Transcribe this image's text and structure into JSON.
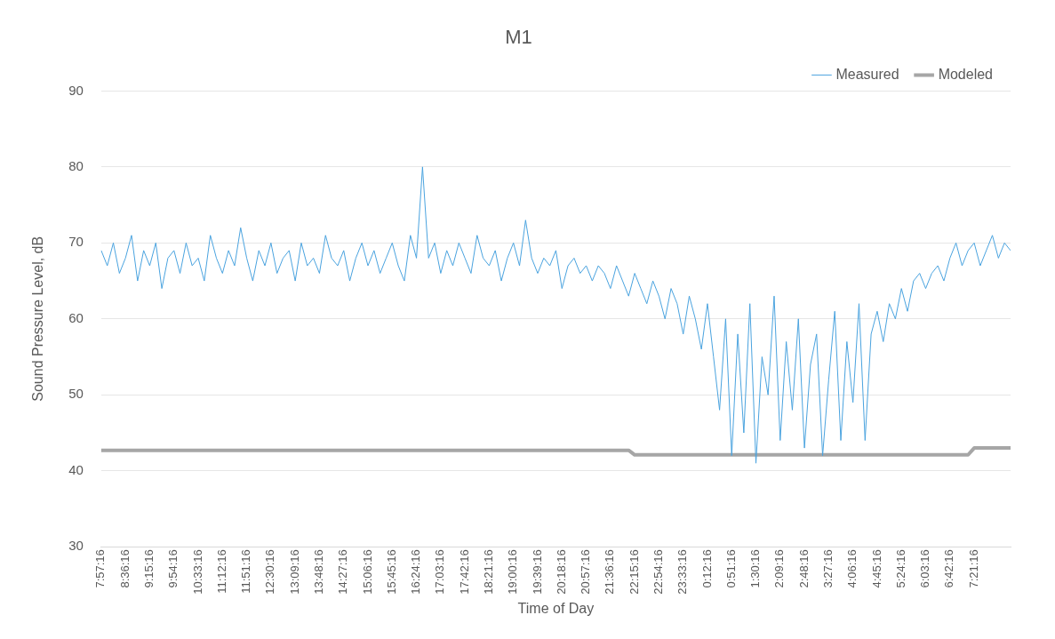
{
  "chart_data": {
    "type": "line",
    "title": "M1",
    "xlabel": "Time of Day",
    "ylabel": "Sound Pressure Level, dB",
    "categories": [
      "7:57:16",
      null,
      null,
      null,
      "8:36:16",
      null,
      null,
      null,
      "9:15:16",
      null,
      null,
      null,
      "9:54:16",
      null,
      null,
      null,
      "10:33:16",
      null,
      null,
      null,
      "11:12:16",
      null,
      null,
      null,
      "11:51:16",
      null,
      null,
      null,
      "12:30:16",
      null,
      null,
      null,
      "13:09:16",
      null,
      null,
      null,
      "13:48:16",
      null,
      null,
      null,
      "14:27:16",
      null,
      null,
      null,
      "15:06:16",
      null,
      null,
      null,
      "15:45:16",
      null,
      null,
      null,
      "16:24:16",
      null,
      null,
      null,
      "17:03:16",
      null,
      null,
      null,
      "17:42:16",
      null,
      null,
      null,
      "18:21:16",
      null,
      null,
      null,
      "19:00:16",
      null,
      null,
      null,
      "19:39:16",
      null,
      null,
      null,
      "20:18:16",
      null,
      null,
      null,
      "20:57:16",
      null,
      null,
      null,
      "21:36:16",
      null,
      null,
      null,
      "22:15:16",
      null,
      null,
      null,
      "22:54:16",
      null,
      null,
      null,
      "23:33:16",
      null,
      null,
      null,
      "0:12:16",
      null,
      null,
      null,
      "0:51:16",
      null,
      null,
      null,
      "1:30:16",
      null,
      null,
      null,
      "2:09:16",
      null,
      null,
      null,
      "2:48:16",
      null,
      null,
      null,
      "3:27:16",
      null,
      null,
      null,
      "4:06:16",
      null,
      null,
      null,
      "4:45:16",
      null,
      null,
      null,
      "5:24:16",
      null,
      null,
      null,
      "6:03:16",
      null,
      null,
      null,
      "6:42:16",
      null,
      null,
      null,
      "7:21:16",
      null,
      null,
      null,
      null,
      null,
      null
    ],
    "series": [
      {
        "name": "Measured",
        "color": "#4aa3df",
        "values": [
          69,
          67,
          70,
          66,
          68,
          71,
          65,
          69,
          67,
          70,
          64,
          68,
          69,
          66,
          70,
          67,
          68,
          65,
          71,
          68,
          66,
          69,
          67,
          72,
          68,
          65,
          69,
          67,
          70,
          66,
          68,
          69,
          65,
          70,
          67,
          68,
          66,
          71,
          68,
          67,
          69,
          65,
          68,
          70,
          67,
          69,
          66,
          68,
          70,
          67,
          65,
          71,
          68,
          80,
          68,
          70,
          66,
          69,
          67,
          70,
          68,
          66,
          71,
          68,
          67,
          69,
          65,
          68,
          70,
          67,
          73,
          68,
          66,
          68,
          67,
          69,
          64,
          67,
          68,
          66,
          67,
          65,
          67,
          66,
          64,
          67,
          65,
          63,
          66,
          64,
          62,
          65,
          63,
          60,
          64,
          62,
          58,
          63,
          60,
          56,
          62,
          55,
          48,
          60,
          42,
          58,
          45,
          62,
          41,
          55,
          50,
          63,
          44,
          57,
          48,
          60,
          43,
          54,
          58,
          42,
          52,
          61,
          44,
          57,
          49,
          62,
          44,
          58,
          61,
          57,
          62,
          60,
          64,
          61,
          65,
          66,
          64,
          66,
          67,
          65,
          68,
          70,
          67,
          69,
          70,
          67,
          69,
          71,
          68,
          70,
          69
        ]
      },
      {
        "name": "Modeled",
        "color": "#a6a6a6",
        "values": [
          42.7,
          42.7,
          42.7,
          42.7,
          42.7,
          42.7,
          42.7,
          42.7,
          42.7,
          42.7,
          42.7,
          42.7,
          42.7,
          42.7,
          42.7,
          42.7,
          42.7,
          42.7,
          42.7,
          42.7,
          42.7,
          42.7,
          42.7,
          42.7,
          42.7,
          42.7,
          42.7,
          42.7,
          42.7,
          42.7,
          42.7,
          42.7,
          42.7,
          42.7,
          42.7,
          42.7,
          42.7,
          42.7,
          42.7,
          42.7,
          42.7,
          42.7,
          42.7,
          42.7,
          42.7,
          42.7,
          42.7,
          42.7,
          42.7,
          42.7,
          42.7,
          42.7,
          42.7,
          42.7,
          42.7,
          42.7,
          42.7,
          42.7,
          42.7,
          42.7,
          42.7,
          42.7,
          42.7,
          42.7,
          42.7,
          42.7,
          42.7,
          42.7,
          42.7,
          42.7,
          42.7,
          42.7,
          42.7,
          42.7,
          42.7,
          42.7,
          42.7,
          42.7,
          42.7,
          42.7,
          42.7,
          42.7,
          42.7,
          42.7,
          42.7,
          42.7,
          42.7,
          42.7,
          42.1,
          42.1,
          42.1,
          42.1,
          42.1,
          42.1,
          42.1,
          42.1,
          42.1,
          42.1,
          42.1,
          42.1,
          42.1,
          42.1,
          42.1,
          42.1,
          42.1,
          42.1,
          42.1,
          42.1,
          42.1,
          42.1,
          42.1,
          42.1,
          42.1,
          42.1,
          42.1,
          42.1,
          42.1,
          42.1,
          42.1,
          42.1,
          42.1,
          42.1,
          42.1,
          42.1,
          42.1,
          42.1,
          42.1,
          42.1,
          42.1,
          42.1,
          42.1,
          42.1,
          42.1,
          42.1,
          42.1,
          42.1,
          42.1,
          42.1,
          42.1,
          42.1,
          42.1,
          42.1,
          42.1,
          42.1,
          43,
          43,
          43,
          43,
          43,
          43,
          43
        ]
      }
    ],
    "ylim": [
      30,
      90
    ],
    "yticks": [
      30,
      40,
      50,
      60,
      70,
      80,
      90
    ],
    "grid": "y",
    "legend": "top right",
    "marker": "none",
    "line_style": "solid"
  }
}
